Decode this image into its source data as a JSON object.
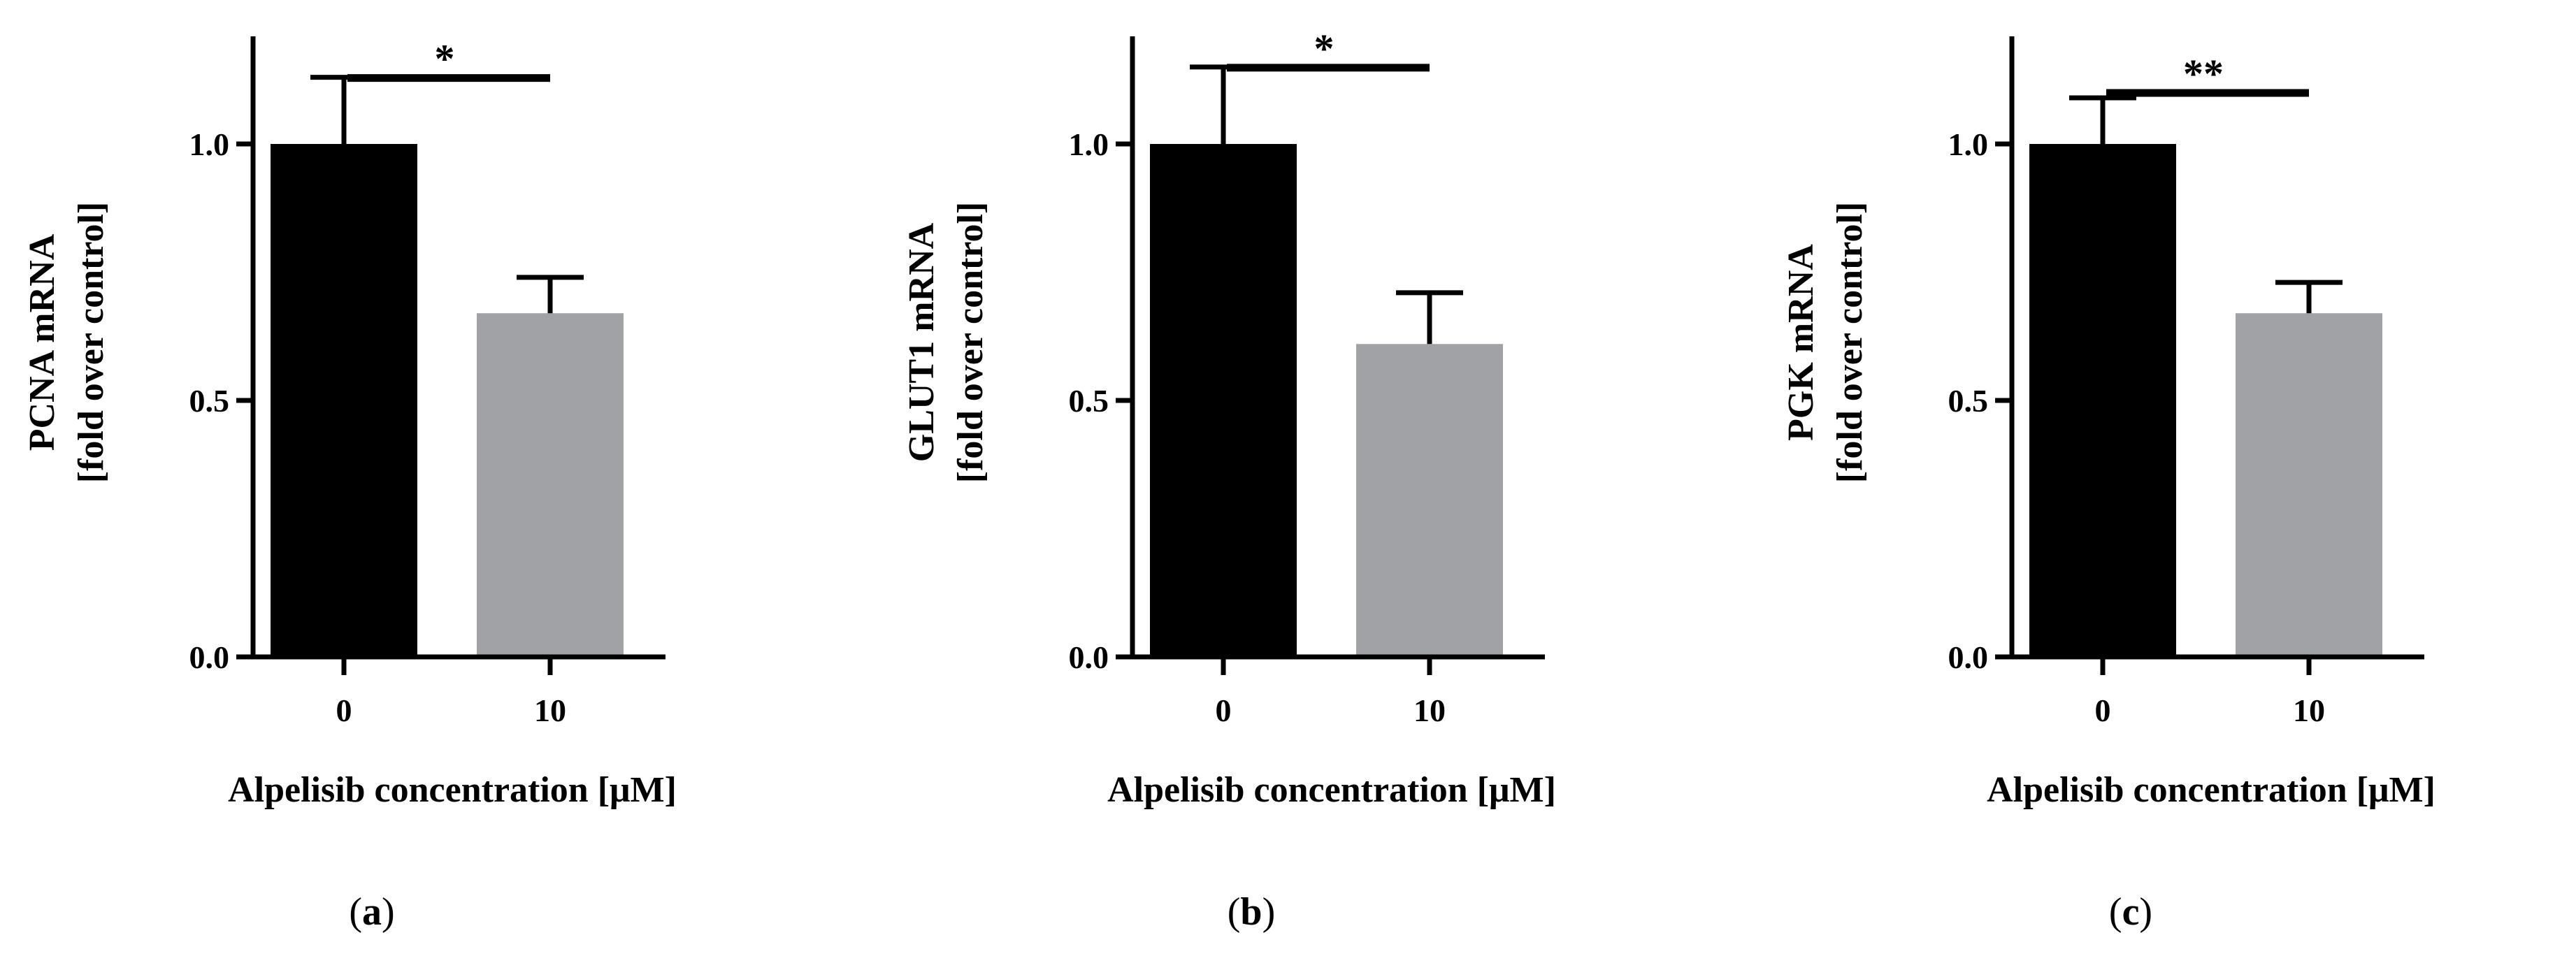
{
  "chart_data": [
    {
      "type": "bar",
      "panel_label": "a",
      "categories": [
        "0",
        "10"
      ],
      "values": [
        1.0,
        0.67
      ],
      "errors": [
        0.13,
        0.07
      ],
      "bar_colors": [
        "#000000",
        "#a1a2a6"
      ],
      "ylabel_lines": [
        "PCNA mRNA",
        "[fold over control]"
      ],
      "xlabel": "Alpelisib concentration [μM]",
      "ylim": [
        0,
        1.2
      ],
      "yticks": [
        "0.0",
        "0.5",
        "1.0"
      ],
      "significance": "*",
      "grid": false,
      "legend": "none"
    },
    {
      "type": "bar",
      "panel_label": "b",
      "categories": [
        "0",
        "10"
      ],
      "values": [
        1.0,
        0.61
      ],
      "errors": [
        0.15,
        0.1
      ],
      "bar_colors": [
        "#000000",
        "#a1a2a6"
      ],
      "ylabel_lines": [
        "GLUT1 mRNA",
        "[fold over control]"
      ],
      "xlabel": "Alpelisib concentration [μM]",
      "ylim": [
        0,
        1.2
      ],
      "yticks": [
        "0.0",
        "0.5",
        "1.0"
      ],
      "significance": "*",
      "grid": false,
      "legend": "none"
    },
    {
      "type": "bar",
      "panel_label": "c",
      "categories": [
        "0",
        "10"
      ],
      "values": [
        1.0,
        0.67
      ],
      "errors": [
        0.09,
        0.06
      ],
      "bar_colors": [
        "#000000",
        "#a1a2a6"
      ],
      "ylabel_lines": [
        "PGK mRNA",
        "[fold over control]"
      ],
      "xlabel": "Alpelisib concentration [μM]",
      "ylim": [
        0,
        1.2
      ],
      "yticks": [
        "0.0",
        "0.5",
        "1.0"
      ],
      "significance": "**",
      "grid": false,
      "legend": "none"
    }
  ]
}
